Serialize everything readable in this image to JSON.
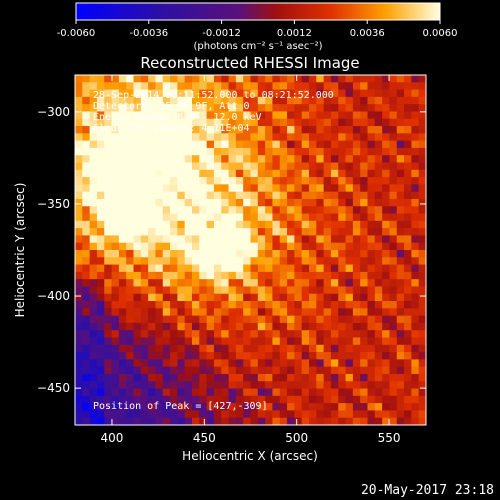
{
  "chart_data": {
    "type": "heatmap",
    "title": "Reconstructed RHESSI Image",
    "xlabel": "Heliocentric X (arcsec)",
    "ylabel": "Heliocentric Y (arcsec)",
    "xlim": [
      380,
      570
    ],
    "ylim": [
      -470,
      -280
    ],
    "xticks": [
      400,
      450,
      500,
      550
    ],
    "yticks": [
      -300,
      -350,
      -400,
      -450
    ],
    "colorbar": {
      "ticks": [
        -0.006,
        -0.0036,
        -0.0012,
        0.0012,
        0.0036,
        0.006
      ],
      "tick_labels": [
        "-0.0060",
        "-0.0036",
        "-0.0012",
        "0.0012",
        "0.0036",
        "0.0060"
      ],
      "label": "(photons cm⁻² s⁻¹ asec⁻²)",
      "range": [
        -0.006,
        0.006
      ]
    },
    "annotations": [
      "28-Sep-2014 08:11:52.000 to 08:21:52.000",
      "Detectors: 3F 6F 9F, Att 0",
      "Energy Range: 6.0 - 12.0 keV",
      "Clean    Tot counts: 4.11E+04"
    ],
    "peak_label": "Position of Peak = [427,-309]",
    "peak": [
      427,
      -309
    ],
    "sources": [
      {
        "x": 460,
        "y": -375,
        "intensity": 0.0058
      },
      {
        "x": 405,
        "y": -327,
        "intensity": 0.005
      },
      {
        "x": 427,
        "y": -309,
        "intensity": 0.006
      },
      {
        "x": 408,
        "y": -356,
        "intensity": 0.0045
      }
    ],
    "grid_size": [
      48,
      48
    ]
  },
  "timestamp": "20-May-2017 23:18",
  "colors": {
    "background": "#000000",
    "foreground": "#ffffff"
  }
}
